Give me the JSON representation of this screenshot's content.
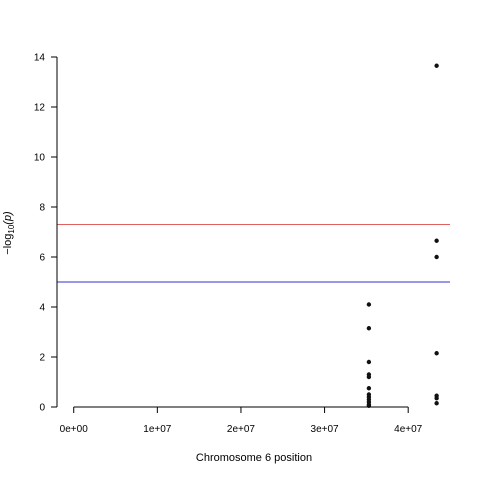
{
  "chart_data": {
    "type": "scatter",
    "title": "",
    "xlabel": "Chromosome 6 position",
    "ylabel_prefix": "−log",
    "ylabel_subscript": "10",
    "ylabel_suffix": "(p)",
    "xlim": [
      -2000000.0,
      45000000.0
    ],
    "ylim": [
      0,
      14
    ],
    "x_ticks": [
      0,
      10000000.0,
      20000000.0,
      30000000.0,
      40000000.0
    ],
    "x_tick_labels": [
      "0e+00",
      "1e+07",
      "2e+07",
      "3e+07",
      "4e+07"
    ],
    "y_ticks": [
      0,
      2,
      4,
      6,
      8,
      10,
      12,
      14
    ],
    "y_tick_labels": [
      "0",
      "2",
      "4",
      "6",
      "8",
      "10",
      "12",
      "14"
    ],
    "grid": false,
    "legend": "none",
    "threshold_lines": [
      {
        "y": 7.3,
        "color": "#e06060"
      },
      {
        "y": 5.0,
        "color": "#3030d0"
      }
    ],
    "point_color": "#111111",
    "points": [
      {
        "x": 35300000,
        "y": 4.1
      },
      {
        "x": 35300000,
        "y": 3.15
      },
      {
        "x": 35300000,
        "y": 1.8
      },
      {
        "x": 35300000,
        "y": 1.3
      },
      {
        "x": 35300000,
        "y": 1.2
      },
      {
        "x": 35300000,
        "y": 0.75
      },
      {
        "x": 35300000,
        "y": 0.5
      },
      {
        "x": 35300000,
        "y": 0.4
      },
      {
        "x": 35300000,
        "y": 0.3
      },
      {
        "x": 35300000,
        "y": 0.2
      },
      {
        "x": 35300000,
        "y": 0.1
      },
      {
        "x": 35300000,
        "y": 0.05
      },
      {
        "x": 43400000,
        "y": 13.65
      },
      {
        "x": 43400000,
        "y": 6.65
      },
      {
        "x": 43400000,
        "y": 6.0
      },
      {
        "x": 43400000,
        "y": 2.15
      },
      {
        "x": 43400000,
        "y": 0.45
      },
      {
        "x": 43400000,
        "y": 0.35
      },
      {
        "x": 43400000,
        "y": 0.15
      }
    ]
  }
}
